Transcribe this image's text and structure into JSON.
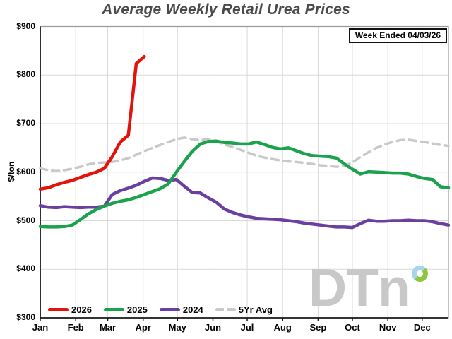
{
  "title": "Average Weekly Retail Urea Prices",
  "week_ended_label": "Week Ended 04/03/26",
  "watermark": {
    "text": "DTn"
  },
  "colors": {
    "title_text": "#4a4a4a",
    "grid": "#d9d9d9",
    "axis": "#1a1a1a",
    "plot_border": "#999999",
    "watermark_gray": "#c8c8c8",
    "watermark_blue": "#a6d5ec",
    "watermark_green": "#8dc63f"
  },
  "chart_data": {
    "type": "line",
    "title": "Average Weekly Retail Urea Prices",
    "xlabel": "",
    "ylabel": "$/ton",
    "ylim": [
      300,
      900
    ],
    "ytick_labels": [
      "$300",
      "$400",
      "$500",
      "$600",
      "$700",
      "$800",
      "$900"
    ],
    "categories": [
      "Jan",
      "Feb",
      "Mar",
      "Apr",
      "May",
      "Jun",
      "Jul",
      "Aug",
      "Sep",
      "Oct",
      "Nov",
      "Dec"
    ],
    "x_unit": "week-of-year (weekly prices, Jan through Dec)",
    "grid": true,
    "legend_position": "bottom-inside",
    "annotation": "Week Ended 04/03/26",
    "series": [
      {
        "name": "2026",
        "color": "#e3120b",
        "style": "solid",
        "weeks": [
          1,
          2,
          3,
          4,
          5,
          6,
          7,
          8,
          9,
          10,
          11,
          12,
          13,
          14
        ],
        "values": [
          565,
          568,
          574,
          579,
          583,
          589,
          595,
          600,
          608,
          632,
          662,
          676,
          824,
          838
        ]
      },
      {
        "name": "2025",
        "color": "#1ca24c",
        "style": "solid",
        "values": [
          488,
          487,
          487,
          488,
          491,
          502,
          514,
          523,
          530,
          536,
          540,
          543,
          548,
          554,
          560,
          566,
          576,
          600,
          622,
          643,
          658,
          663,
          664,
          661,
          660,
          658,
          658,
          662,
          657,
          651,
          648,
          650,
          644,
          638,
          634,
          633,
          632,
          629,
          617,
          606,
          596,
          601,
          600,
          599,
          598,
          598,
          596,
          591,
          587,
          585,
          570,
          568
        ]
      },
      {
        "name": "2024",
        "color": "#6a3fa0",
        "style": "solid",
        "values": [
          531,
          528,
          527,
          529,
          528,
          527,
          528,
          528,
          530,
          554,
          562,
          567,
          573,
          581,
          588,
          587,
          583,
          585,
          571,
          558,
          557,
          547,
          538,
          524,
          517,
          512,
          508,
          505,
          504,
          503,
          502,
          500,
          498,
          495,
          493,
          491,
          489,
          487,
          487,
          486,
          494,
          501,
          499,
          499,
          500,
          500,
          501,
          500,
          500,
          498,
          494,
          491
        ]
      },
      {
        "name": "5Yr Avg",
        "color": "#c9c9c9",
        "style": "dashed",
        "values": [
          608,
          604,
          602,
          604,
          607,
          611,
          616,
          619,
          620,
          621,
          624,
          629,
          636,
          643,
          650,
          656,
          662,
          668,
          671,
          668,
          666,
          668,
          663,
          657,
          652,
          646,
          640,
          634,
          630,
          627,
          624,
          622,
          621,
          619,
          617,
          614,
          613,
          611,
          613,
          620,
          631,
          641,
          650,
          657,
          662,
          666,
          667,
          664,
          662,
          659,
          656,
          654
        ]
      }
    ]
  }
}
